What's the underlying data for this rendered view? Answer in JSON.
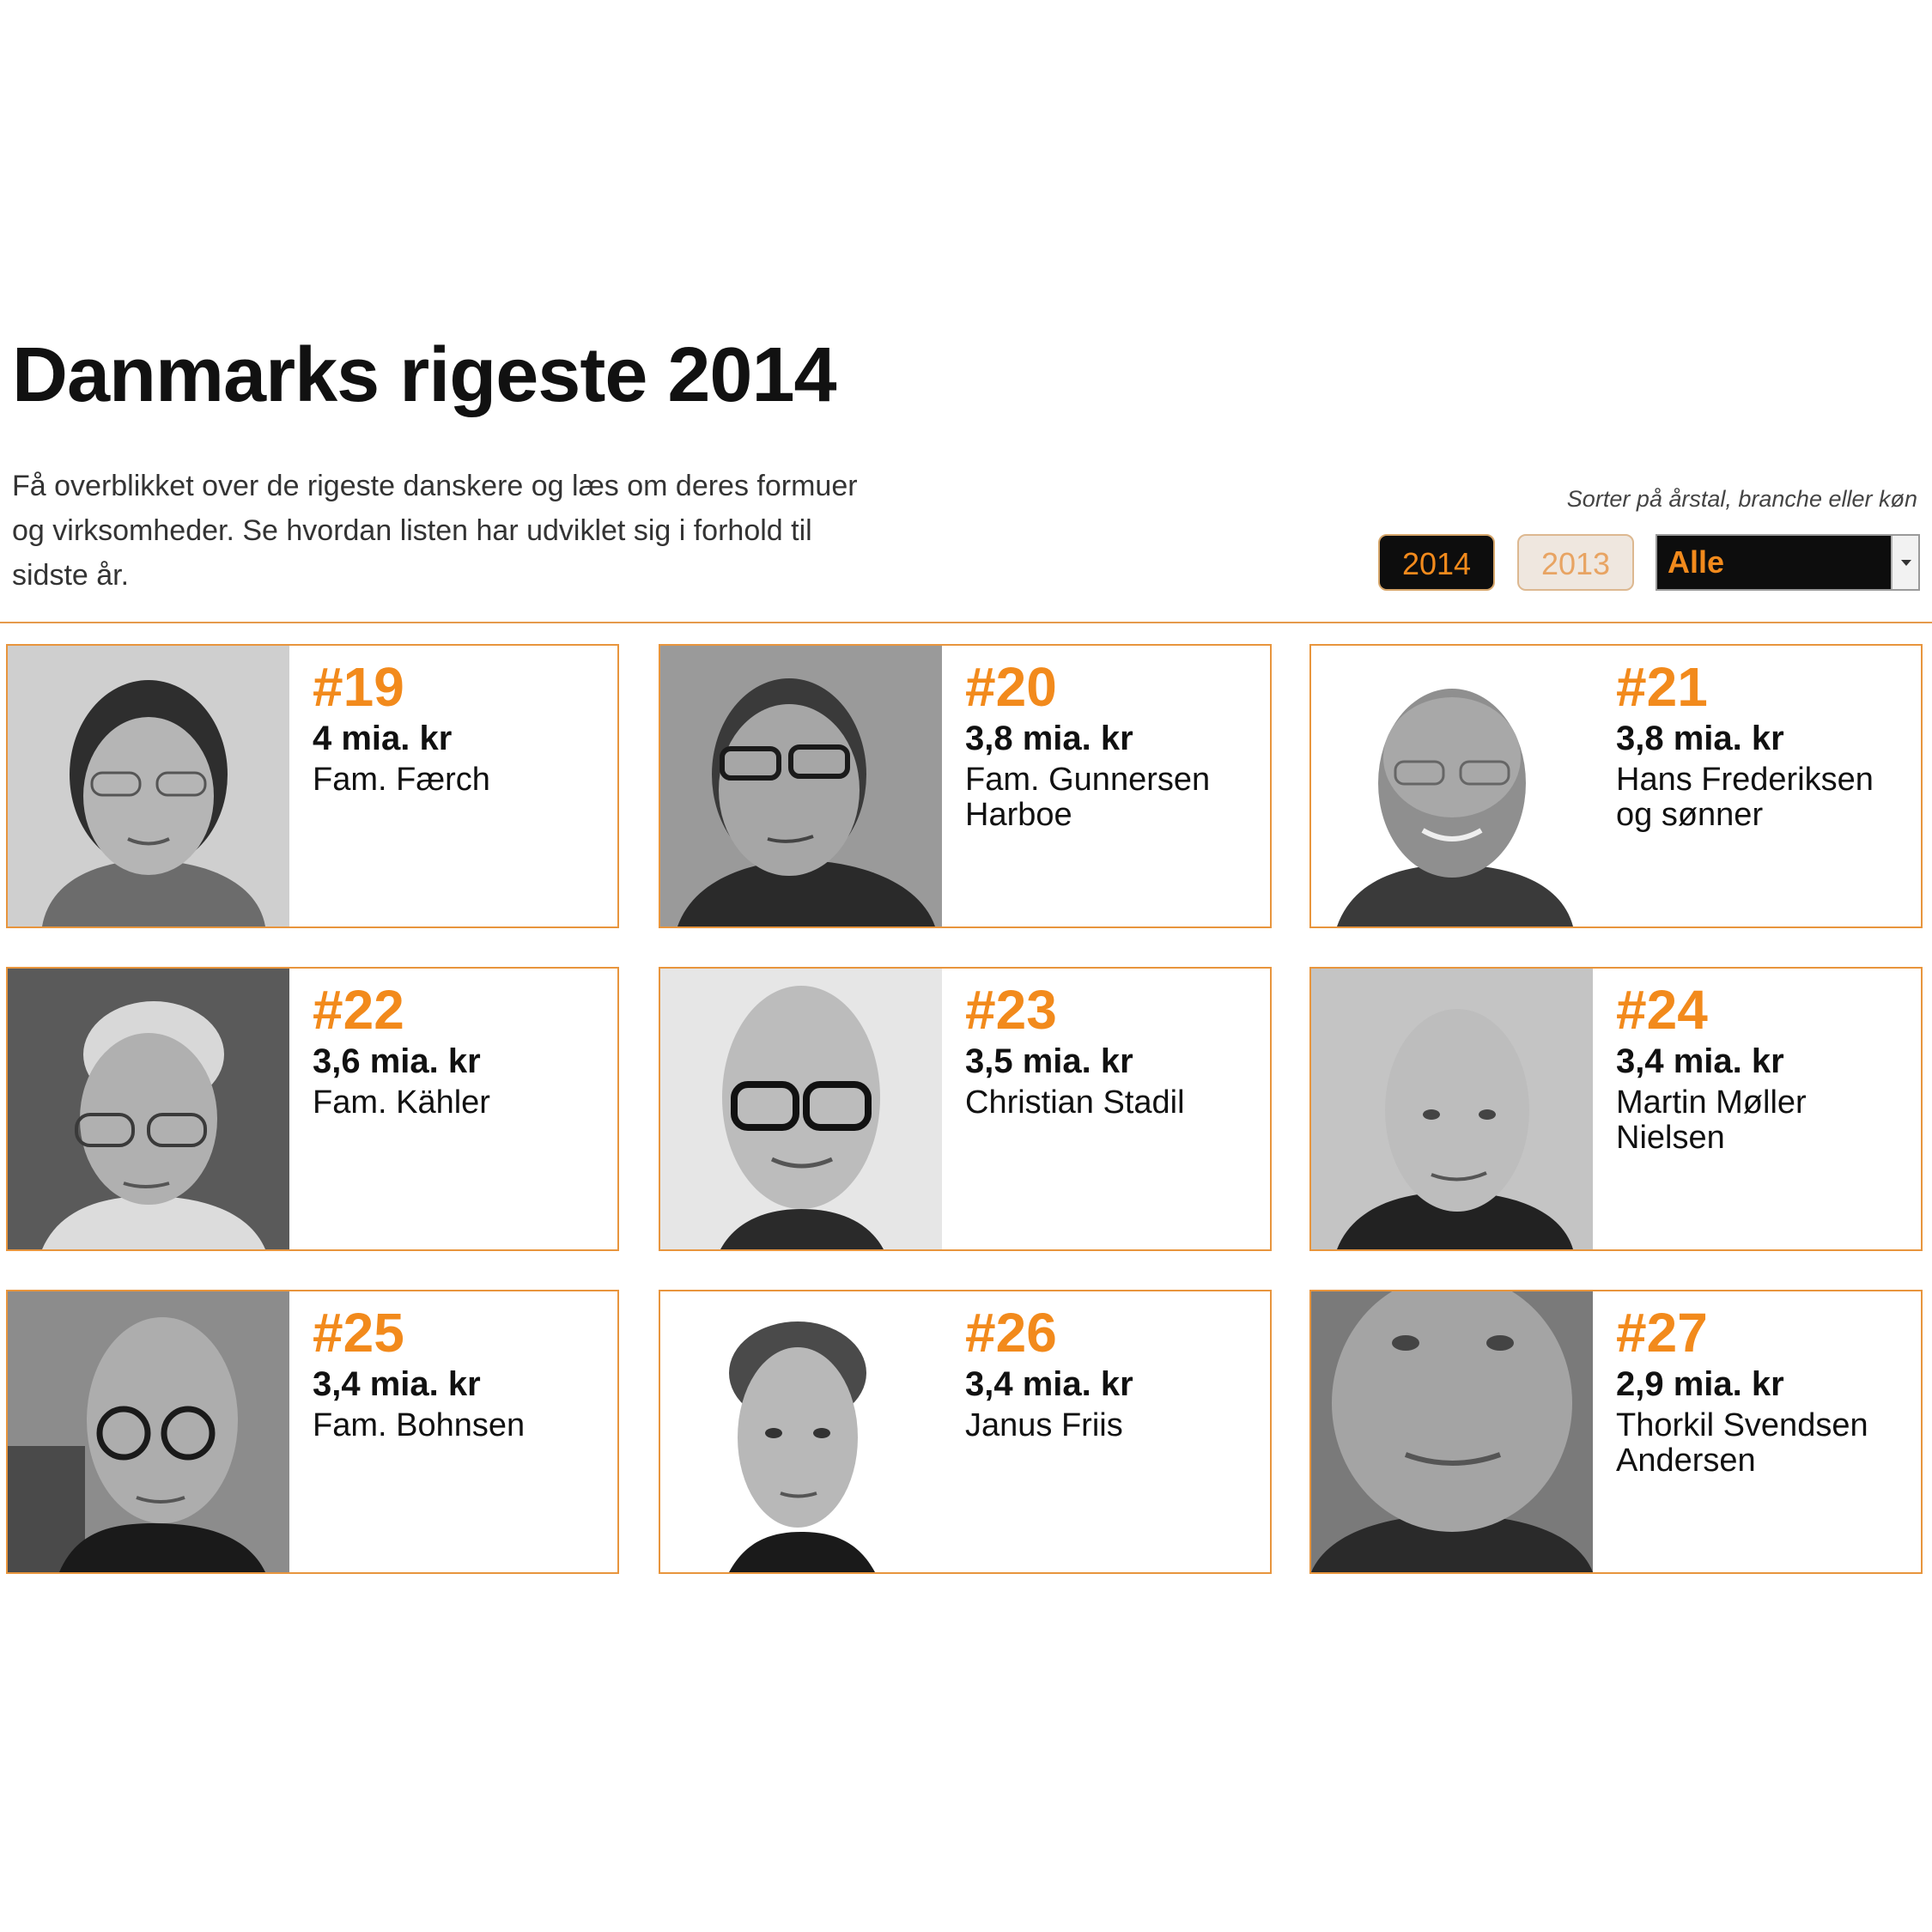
{
  "header": {
    "title": "Danmarks rigeste 2014",
    "intro": "Få overblikket over de rigeste danskere og læs om deres formuer og virksomheder. Se hvordan listen har udviklet sig i forhold til sidste år."
  },
  "controls": {
    "sort_label": "Sorter på årstal, branche eller køn",
    "years": [
      "2014",
      "2013"
    ],
    "active_year": "2014",
    "filter_selected": "Alle"
  },
  "colors": {
    "accent": "#f28a1c",
    "border": "#e8953d",
    "dark": "#0d0d0d"
  },
  "people": [
    {
      "rank": "#19",
      "amount": "4 mia. kr",
      "name": "Fam. Færch"
    },
    {
      "rank": "#20",
      "amount": "3,8 mia. kr",
      "name": "Fam. Gunnersen Harboe"
    },
    {
      "rank": "#21",
      "amount": "3,8 mia. kr",
      "name": "Hans Frederiksen og sønner"
    },
    {
      "rank": "#22",
      "amount": "3,6 mia. kr",
      "name": "Fam. Kähler"
    },
    {
      "rank": "#23",
      "amount": "3,5 mia. kr",
      "name": "Christian Stadil"
    },
    {
      "rank": "#24",
      "amount": "3,4 mia. kr",
      "name": "Martin Møller Nielsen"
    },
    {
      "rank": "#25",
      "amount": "3,4 mia. kr",
      "name": "Fam. Bohnsen"
    },
    {
      "rank": "#26",
      "amount": "3,4 mia. kr",
      "name": "Janus Friis"
    },
    {
      "rank": "#27",
      "amount": "2,9 mia. kr",
      "name": "Thorkil Svendsen Andersen"
    }
  ]
}
